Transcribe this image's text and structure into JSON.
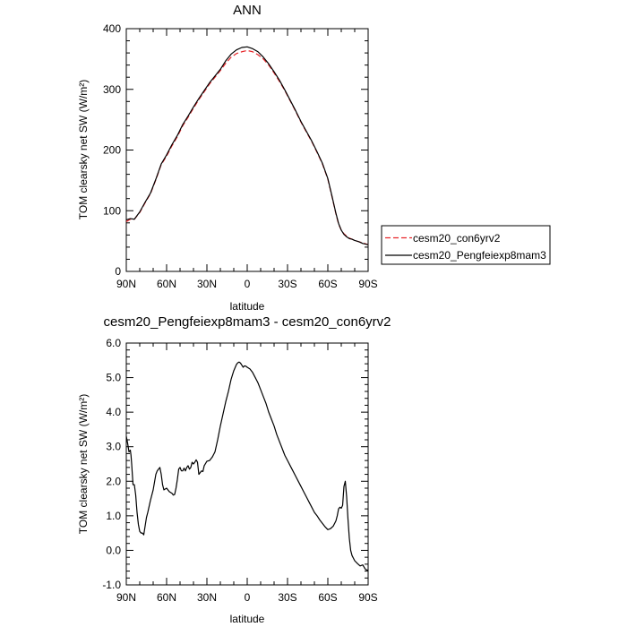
{
  "chart_data": [
    {
      "type": "line",
      "title": "ANN",
      "xlabel": "latitude",
      "ylabel": "TOM clearsky net SW (W/m²)",
      "xlim": [
        90,
        -90
      ],
      "ylim": [
        0,
        400
      ],
      "x_ticks": [
        90,
        60,
        30,
        0,
        -30,
        -60,
        -90
      ],
      "x_tick_labels": [
        "90N",
        "60N",
        "30N",
        "0",
        "30S",
        "60S",
        "90S"
      ],
      "y_ticks": [
        0,
        100,
        200,
        300,
        400
      ],
      "y_tick_labels": [
        "0",
        "100",
        "200",
        "300",
        "400"
      ],
      "legend": "outside-right",
      "series": [
        {
          "name": "cesm20_con6yrv2",
          "color": "#e8262a",
          "dash": "dashed",
          "x": [
            90,
            87,
            84,
            80,
            76,
            72,
            68,
            64,
            60,
            56,
            52,
            48,
            44,
            40,
            36,
            32,
            28,
            24,
            20,
            16,
            12,
            8,
            4,
            0,
            -4,
            -8,
            -12,
            -16,
            -20,
            -24,
            -28,
            -32,
            -36,
            -40,
            -44,
            -48,
            -52,
            -56,
            -60,
            -63,
            -66,
            -68,
            -70,
            -72,
            -74,
            -76,
            -78,
            -80,
            -83,
            -86,
            -90
          ],
          "values": [
            82,
            86,
            86,
            97,
            113,
            128,
            151,
            176,
            190,
            207,
            222,
            240,
            254,
            269,
            283,
            296,
            309,
            320,
            331,
            343,
            353,
            359,
            362,
            364,
            362,
            357,
            350,
            340,
            327,
            313,
            298,
            281,
            264,
            246,
            230,
            214,
            196,
            177,
            152,
            124,
            95,
            78,
            68,
            62,
            58,
            55,
            53,
            51,
            49,
            47,
            44
          ]
        },
        {
          "name": "cesm20_Pengfeiexp8mam3",
          "color": "#000000",
          "dash": "solid",
          "x": [
            90,
            87,
            84,
            80,
            76,
            72,
            68,
            64,
            60,
            56,
            52,
            48,
            44,
            40,
            36,
            32,
            28,
            24,
            20,
            16,
            12,
            8,
            4,
            0,
            -4,
            -8,
            -12,
            -16,
            -20,
            -24,
            -28,
            -32,
            -36,
            -40,
            -44,
            -48,
            -52,
            -56,
            -60,
            -63,
            -66,
            -68,
            -70,
            -72,
            -74,
            -76,
            -78,
            -80,
            -83,
            -86,
            -90
          ],
          "values": [
            85,
            87,
            86,
            98,
            114,
            129,
            152,
            177,
            192,
            209,
            224,
            242,
            256,
            271,
            285,
            298,
            311,
            322,
            333,
            347,
            358,
            365,
            369,
            370,
            367,
            362,
            353,
            342,
            329,
            315,
            299,
            282,
            265,
            247,
            231,
            215,
            197,
            178,
            153,
            125,
            96,
            79,
            68,
            61,
            57,
            54,
            53,
            51,
            49,
            46,
            44
          ]
        }
      ]
    },
    {
      "type": "line",
      "title": "cesm20_Pengfeiexp8mam3 - cesm20_con6yrv2",
      "xlabel": "latitude",
      "ylabel": "TOM clearsky net SW (W/m²)",
      "xlim": [
        90,
        -90
      ],
      "ylim": [
        -1.0,
        6.0
      ],
      "x_ticks": [
        90,
        60,
        30,
        0,
        -30,
        -60,
        -90
      ],
      "x_tick_labels": [
        "90N",
        "60N",
        "30N",
        "0",
        "30S",
        "60S",
        "90S"
      ],
      "y_ticks": [
        -1.0,
        0.0,
        1.0,
        2.0,
        3.0,
        4.0,
        5.0,
        6.0
      ],
      "y_tick_labels": [
        "-1.0",
        "0.0",
        "1.0",
        "2.0",
        "3.0",
        "4.0",
        "5.0",
        "6.0"
      ],
      "series": [
        {
          "color": "#000000",
          "dash": "solid",
          "x": [
            90,
            89,
            88,
            87,
            86.5,
            86,
            85.5,
            85,
            84,
            83,
            82,
            81,
            80,
            79,
            78,
            77,
            76,
            75,
            74,
            72,
            70,
            68,
            67,
            66,
            65,
            64,
            63,
            62,
            60,
            58,
            56,
            55,
            54,
            53,
            52,
            51,
            50,
            49,
            48,
            47,
            46,
            45,
            44,
            43,
            42,
            41,
            40,
            39,
            38,
            37,
            36,
            35,
            34,
            33,
            32,
            30,
            28,
            26,
            24,
            22,
            20,
            18,
            16,
            14,
            12,
            10,
            8,
            7,
            6,
            5,
            4,
            3,
            2,
            1,
            0,
            -2,
            -4,
            -6,
            -8,
            -10,
            -12,
            -14,
            -16,
            -18,
            -20,
            -22,
            -24,
            -26,
            -28,
            -30,
            -32,
            -34,
            -36,
            -38,
            -40,
            -42,
            -44,
            -46,
            -48,
            -50,
            -52,
            -54,
            -56,
            -58,
            -60,
            -62,
            -64,
            -66,
            -67,
            -68,
            -69,
            -70,
            -71,
            -72,
            -73,
            -74,
            -75,
            -76,
            -77,
            -78,
            -80,
            -82,
            -84,
            -86,
            -88,
            -90
          ],
          "values": [
            3.3,
            3.1,
            2.85,
            2.9,
            2.75,
            2.5,
            2.2,
            1.9,
            1.9,
            1.6,
            1.1,
            0.75,
            0.55,
            0.5,
            0.5,
            0.45,
            0.7,
            0.95,
            1.1,
            1.45,
            1.75,
            2.2,
            2.3,
            2.35,
            2.4,
            2.2,
            1.9,
            1.75,
            1.8,
            1.7,
            1.65,
            1.6,
            1.62,
            1.8,
            2.05,
            2.35,
            2.4,
            2.3,
            2.3,
            2.38,
            2.3,
            2.4,
            2.45,
            2.35,
            2.4,
            2.55,
            2.5,
            2.55,
            2.62,
            2.55,
            2.2,
            2.25,
            2.3,
            2.28,
            2.45,
            2.58,
            2.6,
            2.7,
            2.85,
            3.2,
            3.6,
            3.95,
            4.3,
            4.6,
            4.95,
            5.2,
            5.38,
            5.43,
            5.45,
            5.42,
            5.36,
            5.3,
            5.34,
            5.33,
            5.3,
            5.25,
            5.15,
            5.0,
            4.85,
            4.65,
            4.45,
            4.25,
            4.0,
            3.8,
            3.6,
            3.35,
            3.15,
            2.95,
            2.75,
            2.6,
            2.45,
            2.3,
            2.15,
            2.0,
            1.85,
            1.7,
            1.55,
            1.4,
            1.25,
            1.1,
            1.0,
            0.88,
            0.78,
            0.68,
            0.6,
            0.63,
            0.7,
            0.85,
            1.0,
            1.2,
            1.25,
            1.22,
            1.3,
            1.85,
            2.0,
            1.55,
            0.9,
            0.35,
            0.0,
            -0.15,
            -0.3,
            -0.38,
            -0.45,
            -0.42,
            -0.55,
            -0.58
          ]
        }
      ]
    }
  ]
}
